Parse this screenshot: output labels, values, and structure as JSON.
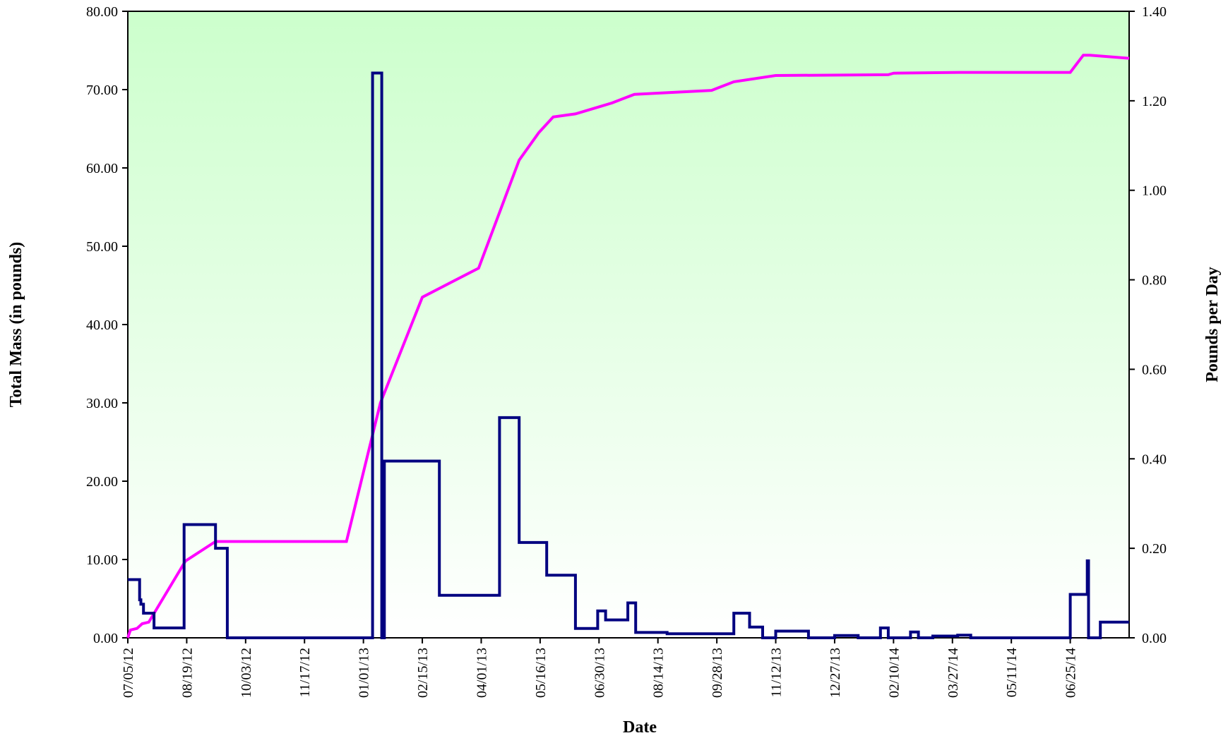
{
  "chart_data": {
    "type": "line",
    "xlabel": "Date",
    "ylabel_left": "Total Mass (in pounds)",
    "ylabel_right": "Pounds per Day",
    "x_axis": {
      "type": "date",
      "range": [
        "2012-07-05",
        "2014-08-09"
      ],
      "tick_dates": [
        "2012-07-05",
        "2012-08-19",
        "2012-10-03",
        "2012-11-17",
        "2013-01-01",
        "2013-02-15",
        "2013-04-01",
        "2013-05-16",
        "2013-06-30",
        "2013-08-14",
        "2013-09-28",
        "2013-11-12",
        "2013-12-27",
        "2014-02-10",
        "2014-03-27",
        "2014-05-11",
        "2014-06-25"
      ],
      "tick_labels": [
        "07/05/12",
        "08/19/12",
        "10/03/12",
        "11/17/12",
        "01/01/13",
        "02/15/13",
        "04/01/13",
        "05/16/13",
        "06/30/13",
        "08/14/13",
        "09/28/13",
        "11/12/13",
        "12/27/13",
        "02/10/14",
        "03/27/14",
        "05/11/14",
        "06/25/14"
      ]
    },
    "y_left": {
      "range": [
        0,
        80
      ],
      "ticks": [
        0,
        10,
        20,
        30,
        40,
        50,
        60,
        70,
        80
      ],
      "tick_labels": [
        "0.00",
        "10.00",
        "20.00",
        "30.00",
        "40.00",
        "50.00",
        "60.00",
        "70.00",
        "80.00"
      ]
    },
    "y_right": {
      "range": [
        0,
        1.4
      ],
      "ticks": [
        0,
        0.2,
        0.4,
        0.6,
        0.8,
        1.0,
        1.2,
        1.4
      ],
      "tick_labels": [
        "0.00",
        "0.20",
        "0.40",
        "0.60",
        "0.80",
        "1.00",
        "1.20",
        "1.40"
      ]
    },
    "background_gradient": [
      "#ccffcc",
      "#ffffff"
    ],
    "grid": false,
    "legend": "none",
    "series": [
      {
        "axis": "left",
        "color": "#ff00ff",
        "points": [
          [
            "2012-07-05",
            0.0
          ],
          [
            "2012-07-07",
            1.0
          ],
          [
            "2012-07-12",
            1.2
          ],
          [
            "2012-07-16",
            1.8
          ],
          [
            "2012-07-21",
            2.0
          ],
          [
            "2012-08-18",
            9.8
          ],
          [
            "2012-09-10",
            12.3
          ],
          [
            "2012-12-19",
            12.3
          ],
          [
            "2013-01-14",
            30.0
          ],
          [
            "2013-02-15",
            43.5
          ],
          [
            "2013-03-30",
            47.2
          ],
          [
            "2013-04-30",
            61.0
          ],
          [
            "2013-05-15",
            64.5
          ],
          [
            "2013-05-26",
            66.5
          ],
          [
            "2013-06-12",
            66.9
          ],
          [
            "2013-06-30",
            67.8
          ],
          [
            "2013-07-10",
            68.3
          ],
          [
            "2013-07-27",
            69.4
          ],
          [
            "2013-09-24",
            69.9
          ],
          [
            "2013-10-11",
            71.0
          ],
          [
            "2013-11-12",
            71.8
          ],
          [
            "2014-02-06",
            71.9
          ],
          [
            "2014-02-10",
            72.1
          ],
          [
            "2014-04-01",
            72.2
          ],
          [
            "2014-06-25",
            72.2
          ],
          [
            "2014-07-05",
            74.4
          ],
          [
            "2014-07-10",
            74.4
          ],
          [
            "2014-08-09",
            74.0
          ]
        ]
      },
      {
        "axis": "right",
        "color": "#000080",
        "step": true,
        "points": [
          [
            "2012-07-05",
            0.13
          ],
          [
            "2012-07-14",
            0.085
          ],
          [
            "2012-07-15",
            0.075
          ],
          [
            "2012-07-17",
            0.055
          ],
          [
            "2012-07-25",
            0.022
          ],
          [
            "2012-08-17",
            0.253
          ],
          [
            "2012-09-10",
            0.2
          ],
          [
            "2012-09-19",
            0.0
          ],
          [
            "2013-01-08",
            1.262
          ],
          [
            "2013-01-15",
            0.0
          ],
          [
            "2013-01-17",
            0.395
          ],
          [
            "2013-02-28",
            0.095
          ],
          [
            "2013-04-15",
            0.492
          ],
          [
            "2013-04-30",
            0.213
          ],
          [
            "2013-05-21",
            0.14
          ],
          [
            "2013-06-12",
            0.021
          ],
          [
            "2013-06-29",
            0.06
          ],
          [
            "2013-07-05",
            0.04
          ],
          [
            "2013-07-22",
            0.078
          ],
          [
            "2013-07-28",
            0.012
          ],
          [
            "2013-08-21",
            0.009
          ],
          [
            "2013-10-11",
            0.055
          ],
          [
            "2013-10-23",
            0.024
          ],
          [
            "2013-11-02",
            0.0
          ],
          [
            "2013-11-12",
            0.015
          ],
          [
            "2013-12-07",
            0.0
          ],
          [
            "2013-12-27",
            0.005
          ],
          [
            "2014-01-14",
            0.0
          ],
          [
            "2014-01-31",
            0.022
          ],
          [
            "2014-02-06",
            0.0
          ],
          [
            "2014-02-23",
            0.013
          ],
          [
            "2014-03-01",
            0.0
          ],
          [
            "2014-03-12",
            0.004
          ],
          [
            "2014-03-31",
            0.006
          ],
          [
            "2014-04-10",
            0.0
          ],
          [
            "2014-06-25",
            0.097
          ],
          [
            "2014-07-08",
            0.172
          ],
          [
            "2014-07-09",
            0.0
          ],
          [
            "2014-07-18",
            0.035
          ],
          [
            "2014-08-09",
            0.035
          ]
        ]
      }
    ]
  }
}
